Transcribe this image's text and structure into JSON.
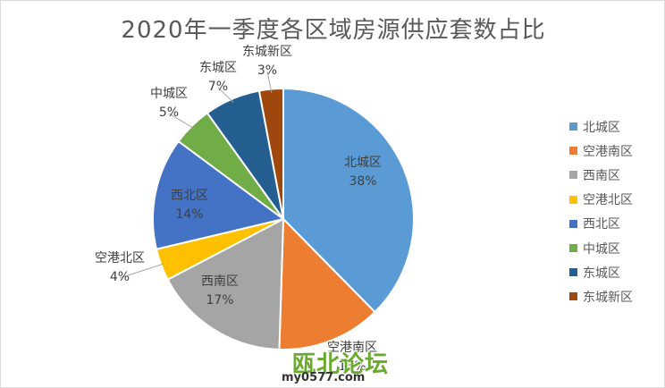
{
  "chart_data": {
    "type": "pie",
    "title": "2020年一季度各区域房源供应套数占比",
    "categories": [
      "北城区",
      "空港南区",
      "西南区",
      "空港北区",
      "西北区",
      "中城区",
      "东城区",
      "东城新区"
    ],
    "values": [
      38,
      13,
      17,
      4,
      14,
      5,
      7,
      3
    ],
    "labels": [
      "38%",
      "13%",
      "17%",
      "4%",
      "14%",
      "5%",
      "7%",
      "3%"
    ],
    "colors": [
      "#5b9bd5",
      "#ed7d31",
      "#a5a5a5",
      "#ffc000",
      "#4472c4",
      "#70ad47",
      "#255e91",
      "#9e480e"
    ],
    "start_angle_deg": 0,
    "direction": "clockwise",
    "legend_position": "right"
  },
  "watermark": {
    "logo_text": "瓯北论坛",
    "url_text": "my0577.com"
  }
}
